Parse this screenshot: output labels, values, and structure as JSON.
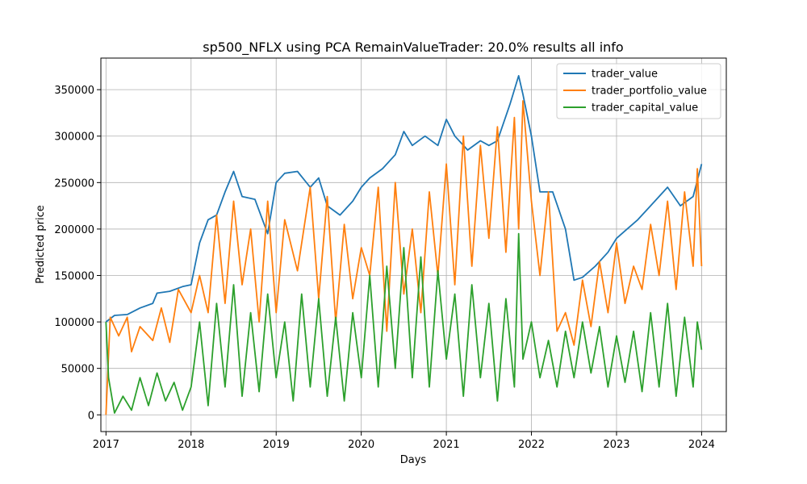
{
  "chart_data": {
    "type": "line",
    "title": "sp500_NFLX using PCA RemainValueTrader: 20.0% results all info",
    "xlabel": "Days",
    "ylabel": "Predicted price",
    "x_tick_labels": [
      "2017",
      "2018",
      "2019",
      "2020",
      "2021",
      "2022",
      "2023",
      "2024"
    ],
    "y_tick_labels": [
      "0",
      "50000",
      "100000",
      "150000",
      "200000",
      "250000",
      "300000",
      "350000"
    ],
    "xlim": [
      2016.94,
      2024.29
    ],
    "ylim": [
      -18000,
      384000
    ],
    "grid": true,
    "legend_position": "top-right",
    "series": [
      {
        "name": "trader_value",
        "color": "#1f77b4",
        "x": [
          2017.0,
          2017.1,
          2017.25,
          2017.4,
          2017.55,
          2017.6,
          2017.75,
          2017.9,
          2018.0,
          2018.1,
          2018.2,
          2018.3,
          2018.4,
          2018.5,
          2018.6,
          2018.75,
          2018.9,
          2019.0,
          2019.1,
          2019.25,
          2019.4,
          2019.5,
          2019.6,
          2019.75,
          2019.9,
          2020.0,
          2020.1,
          2020.25,
          2020.4,
          2020.5,
          2020.6,
          2020.75,
          2020.9,
          2021.0,
          2021.1,
          2021.25,
          2021.4,
          2021.5,
          2021.6,
          2021.75,
          2021.85,
          2021.9,
          2022.0,
          2022.1,
          2022.25,
          2022.4,
          2022.5,
          2022.6,
          2022.75,
          2022.9,
          2023.0,
          2023.1,
          2023.25,
          2023.4,
          2023.5,
          2023.6,
          2023.75,
          2023.9,
          2024.0
        ],
        "y": [
          100000,
          107000,
          108000,
          115000,
          120000,
          131000,
          133000,
          138000,
          140000,
          185000,
          210000,
          215000,
          240000,
          262000,
          235000,
          232000,
          195000,
          250000,
          260000,
          262000,
          245000,
          255000,
          225000,
          215000,
          230000,
          245000,
          255000,
          265000,
          280000,
          305000,
          290000,
          300000,
          290000,
          318000,
          300000,
          285000,
          295000,
          290000,
          295000,
          335000,
          365000,
          345000,
          300000,
          240000,
          240000,
          200000,
          145000,
          148000,
          160000,
          175000,
          190000,
          198000,
          210000,
          225000,
          235000,
          245000,
          225000,
          235000,
          270000
        ]
      },
      {
        "name": "trader_portfolio_value",
        "color": "#ff7f0e",
        "x": [
          2017.0,
          2017.05,
          2017.15,
          2017.25,
          2017.3,
          2017.4,
          2017.55,
          2017.65,
          2017.75,
          2017.85,
          2018.0,
          2018.1,
          2018.2,
          2018.3,
          2018.4,
          2018.5,
          2018.6,
          2018.7,
          2018.8,
          2018.9,
          2019.0,
          2019.1,
          2019.25,
          2019.4,
          2019.5,
          2019.6,
          2019.7,
          2019.8,
          2019.9,
          2020.0,
          2020.1,
          2020.2,
          2020.3,
          2020.4,
          2020.5,
          2020.6,
          2020.7,
          2020.8,
          2020.9,
          2021.0,
          2021.1,
          2021.2,
          2021.3,
          2021.4,
          2021.5,
          2021.6,
          2021.7,
          2021.8,
          2021.85,
          2021.9,
          2022.0,
          2022.1,
          2022.2,
          2022.3,
          2022.4,
          2022.5,
          2022.6,
          2022.7,
          2022.8,
          2022.9,
          2023.0,
          2023.1,
          2023.2,
          2023.3,
          2023.4,
          2023.5,
          2023.6,
          2023.7,
          2023.8,
          2023.9,
          2023.95,
          2024.0
        ],
        "y": [
          0,
          105000,
          85000,
          105000,
          68000,
          95000,
          80000,
          115000,
          78000,
          135000,
          110000,
          150000,
          110000,
          215000,
          120000,
          230000,
          140000,
          200000,
          100000,
          230000,
          110000,
          210000,
          155000,
          245000,
          125000,
          235000,
          100000,
          205000,
          125000,
          180000,
          150000,
          245000,
          90000,
          250000,
          130000,
          200000,
          110000,
          240000,
          150000,
          270000,
          140000,
          300000,
          160000,
          290000,
          190000,
          310000,
          175000,
          320000,
          200000,
          338000,
          230000,
          150000,
          240000,
          90000,
          110000,
          75000,
          145000,
          95000,
          165000,
          110000,
          185000,
          120000,
          160000,
          135000,
          205000,
          150000,
          230000,
          135000,
          240000,
          160000,
          265000,
          160000
        ]
      },
      {
        "name": "trader_capital_value",
        "color": "#2ca02c",
        "x": [
          2017.0,
          2017.03,
          2017.1,
          2017.2,
          2017.3,
          2017.4,
          2017.5,
          2017.6,
          2017.7,
          2017.8,
          2017.9,
          2018.0,
          2018.1,
          2018.2,
          2018.3,
          2018.4,
          2018.5,
          2018.6,
          2018.7,
          2018.8,
          2018.9,
          2019.0,
          2019.1,
          2019.2,
          2019.3,
          2019.4,
          2019.5,
          2019.6,
          2019.7,
          2019.8,
          2019.9,
          2020.0,
          2020.1,
          2020.2,
          2020.3,
          2020.4,
          2020.5,
          2020.6,
          2020.7,
          2020.8,
          2020.9,
          2021.0,
          2021.1,
          2021.2,
          2021.3,
          2021.4,
          2021.5,
          2021.6,
          2021.7,
          2021.8,
          2021.85,
          2021.9,
          2022.0,
          2022.1,
          2022.2,
          2022.3,
          2022.4,
          2022.5,
          2022.6,
          2022.7,
          2022.8,
          2022.9,
          2023.0,
          2023.1,
          2023.2,
          2023.3,
          2023.4,
          2023.5,
          2023.6,
          2023.7,
          2023.8,
          2023.9,
          2023.95,
          2024.0
        ],
        "y": [
          100000,
          40000,
          2000,
          20000,
          5000,
          40000,
          10000,
          45000,
          15000,
          35000,
          5000,
          30000,
          100000,
          10000,
          120000,
          30000,
          140000,
          20000,
          110000,
          25000,
          130000,
          40000,
          100000,
          15000,
          130000,
          30000,
          125000,
          20000,
          105000,
          15000,
          110000,
          40000,
          150000,
          30000,
          160000,
          50000,
          180000,
          40000,
          170000,
          30000,
          155000,
          60000,
          130000,
          20000,
          140000,
          40000,
          120000,
          15000,
          125000,
          30000,
          195000,
          60000,
          100000,
          40000,
          80000,
          30000,
          90000,
          40000,
          100000,
          45000,
          95000,
          30000,
          85000,
          35000,
          90000,
          25000,
          110000,
          30000,
          120000,
          20000,
          105000,
          30000,
          100000,
          70000
        ]
      }
    ]
  }
}
